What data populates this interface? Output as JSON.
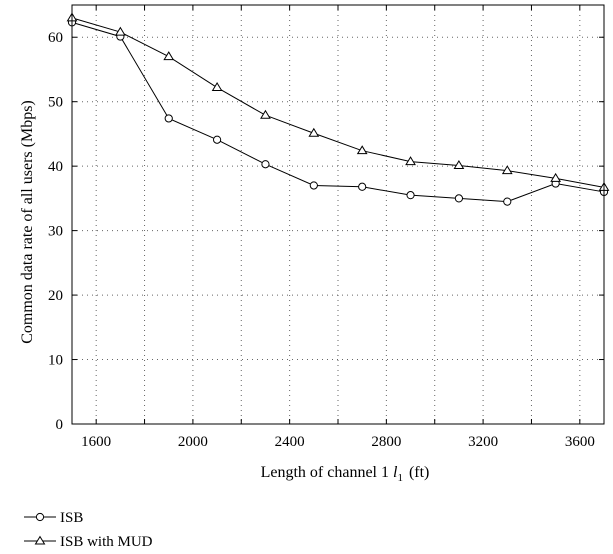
{
  "chart_data": {
    "type": "line",
    "title": "",
    "xlabel_main": "Length of channel 1",
    "xlabel_var": "l",
    "xlabel_sub": "1",
    "xlabel_unit": "(ft)",
    "ylabel": "Common data rate of all users (Mbps)",
    "xlim": [
      1500,
      3700
    ],
    "ylim": [
      0,
      65
    ],
    "xticks": [
      1600,
      2000,
      2400,
      2800,
      3200,
      3600
    ],
    "yticks": [
      0,
      10,
      20,
      30,
      40,
      50,
      60
    ],
    "grid": true,
    "grid_x": [
      1600,
      1800,
      2000,
      2200,
      2400,
      2600,
      2800,
      3000,
      3200,
      3400,
      3600
    ],
    "grid_y": [
      10,
      20,
      30,
      40,
      50,
      60
    ],
    "legend_position": "below-left",
    "x": [
      1500,
      1700,
      1900,
      2100,
      2300,
      2500,
      2700,
      2900,
      3100,
      3300,
      3500,
      3700
    ],
    "series": [
      {
        "name": "ISB",
        "marker": "circle",
        "values": [
          62.3,
          60.1,
          47.4,
          44.1,
          40.3,
          37.0,
          36.8,
          35.5,
          35.0,
          34.5,
          37.3,
          36.0
        ]
      },
      {
        "name": "ISB with MUD",
        "marker": "triangle",
        "values": [
          63.0,
          60.8,
          57.0,
          52.2,
          47.9,
          45.1,
          42.4,
          40.7,
          40.1,
          39.3,
          38.1,
          36.7
        ]
      }
    ]
  }
}
